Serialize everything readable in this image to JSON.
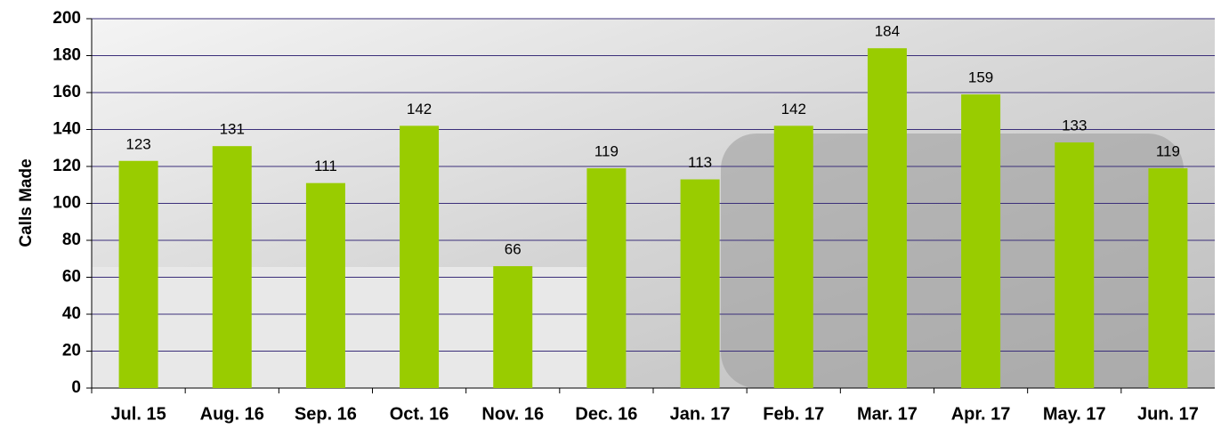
{
  "chart_data": {
    "type": "bar",
    "y_label": "Calls Made",
    "categories": [
      "Jul. 15",
      "Aug. 16",
      "Sep. 16",
      "Oct. 16",
      "Nov. 16",
      "Dec. 16",
      "Jan. 17",
      "Feb. 17",
      "Mar. 17",
      "Apr. 17",
      "May. 17",
      "Jun. 17"
    ],
    "values": [
      123,
      131,
      111,
      142,
      66,
      119,
      113,
      142,
      184,
      159,
      133,
      119
    ],
    "color": "#99cc00",
    "ylim": [
      0,
      200
    ],
    "yticks": [
      0,
      20,
      40,
      60,
      80,
      100,
      120,
      140,
      160,
      180,
      200
    ],
    "grid": true
  }
}
